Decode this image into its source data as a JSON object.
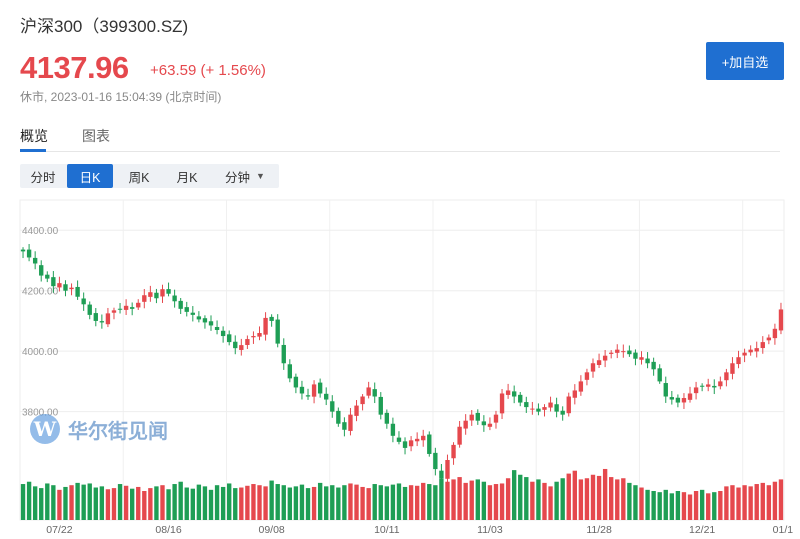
{
  "header": {
    "title": "沪深300（399300.SZ)",
    "price": "4137.96",
    "change": "+63.59 (+ 1.56%)",
    "status": "休市, 2023-01-16 15:04:39 (北京时间)",
    "add_label": "+加自选"
  },
  "tabs": [
    {
      "label": "概览",
      "active": true
    },
    {
      "label": "图表",
      "active": false
    }
  ],
  "periods": [
    {
      "label": "分时",
      "active": false
    },
    {
      "label": "日K",
      "active": true
    },
    {
      "label": "周K",
      "active": false
    },
    {
      "label": "月K",
      "active": false
    },
    {
      "label": "分钟",
      "active": false
    }
  ],
  "watermark": "华尔街见闻",
  "colors": {
    "up": "#e5484d",
    "down": "#1e9e55",
    "accent": "#1f6fd1"
  },
  "chart_data": {
    "type": "candlestick",
    "y_ticks": [
      "4400.00",
      "4200.00",
      "4000.00",
      "3800.00"
    ],
    "y_tick_values": [
      4400,
      4200,
      4000,
      3800
    ],
    "ylim": [
      3640,
      4500
    ],
    "x_ticks": [
      "07/22",
      "08/16",
      "09/08",
      "10/11",
      "11/03",
      "11/28",
      "12/21",
      "01/1"
    ],
    "x_tick_index": [
      6,
      24,
      41,
      60,
      77,
      95,
      112,
      127
    ],
    "grid": true,
    "closes": [
      4330,
      4310,
      4290,
      4250,
      4240,
      4215,
      4225,
      4200,
      4210,
      4180,
      4155,
      4120,
      4100,
      4095,
      4125,
      4135,
      4140,
      4150,
      4140,
      4160,
      4185,
      4195,
      4175,
      4205,
      4190,
      4165,
      4140,
      4130,
      4120,
      4105,
      4095,
      4085,
      4070,
      4050,
      4030,
      4010,
      4020,
      4040,
      4050,
      4060,
      4110,
      4100,
      4025,
      3960,
      3910,
      3880,
      3860,
      3850,
      3890,
      3860,
      3840,
      3800,
      3760,
      3740,
      3790,
      3820,
      3850,
      3880,
      3850,
      3790,
      3760,
      3720,
      3700,
      3680,
      3705,
      3710,
      3720,
      3660,
      3610,
      3580,
      3640,
      3690,
      3750,
      3770,
      3790,
      3770,
      3755,
      3760,
      3790,
      3860,
      3870,
      3850,
      3830,
      3815,
      3810,
      3800,
      3815,
      3830,
      3800,
      3790,
      3850,
      3870,
      3900,
      3930,
      3960,
      3970,
      3985,
      3995,
      4005,
      4000,
      3990,
      3975,
      3980,
      3960,
      3940,
      3900,
      3850,
      3840,
      3830,
      3845,
      3860,
      3880,
      3885,
      3890,
      3880,
      3900,
      3930,
      3960,
      3980,
      3995,
      4005,
      4010,
      4030,
      4045,
      4074,
      4138
    ],
    "volumes": [
      0.62,
      0.66,
      0.58,
      0.55,
      0.63,
      0.6,
      0.52,
      0.57,
      0.6,
      0.64,
      0.61,
      0.63,
      0.56,
      0.58,
      0.53,
      0.55,
      0.62,
      0.59,
      0.54,
      0.57,
      0.5,
      0.55,
      0.58,
      0.6,
      0.53,
      0.62,
      0.66,
      0.56,
      0.54,
      0.61,
      0.58,
      0.52,
      0.6,
      0.57,
      0.63,
      0.55,
      0.56,
      0.59,
      0.62,
      0.6,
      0.58,
      0.68,
      0.62,
      0.6,
      0.56,
      0.58,
      0.61,
      0.55,
      0.57,
      0.64,
      0.58,
      0.6,
      0.56,
      0.6,
      0.63,
      0.61,
      0.57,
      0.55,
      0.62,
      0.6,
      0.58,
      0.61,
      0.63,
      0.57,
      0.6,
      0.59,
      0.64,
      0.62,
      0.6,
      0.72,
      0.66,
      0.7,
      0.74,
      0.64,
      0.68,
      0.7,
      0.66,
      0.6,
      0.62,
      0.63,
      0.72,
      0.86,
      0.78,
      0.74,
      0.66,
      0.7,
      0.64,
      0.58,
      0.66,
      0.72,
      0.8,
      0.85,
      0.7,
      0.72,
      0.78,
      0.76,
      0.88,
      0.74,
      0.7,
      0.72,
      0.64,
      0.6,
      0.56,
      0.52,
      0.5,
      0.48,
      0.52,
      0.46,
      0.5,
      0.48,
      0.44,
      0.5,
      0.52,
      0.46,
      0.48,
      0.5,
      0.58,
      0.6,
      0.56,
      0.6,
      0.58,
      0.62,
      0.64,
      0.6,
      0.66,
      0.7
    ]
  }
}
